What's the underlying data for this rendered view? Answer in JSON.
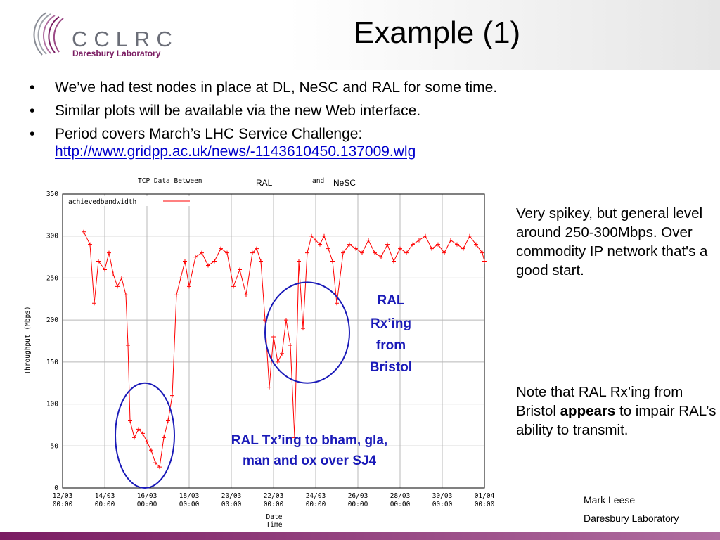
{
  "slide": {
    "title": "Example (1)",
    "logo": {
      "text": "CCLRC",
      "subtitle": "Daresbury Laboratory"
    },
    "bullets": [
      "We’ve had test nodes in place at DL, NeSC and RAL for some time.",
      "Similar plots will be available via the new Web interface.",
      "Period covers March’s LHC Service Challenge:"
    ],
    "link": "http://www.gridpp.ac.uk/news/-1143610450.137009.wlg",
    "note_1": "Very spikey, but general level around 250-300Mbps. Over commodity IP network that's a good start.",
    "note_2_before": "Note that RAL Rx’ing from Bristol ",
    "note_2_bold": "appears",
    "note_2_after": " to impair RAL’s ability to transmit.",
    "author": "Mark Leese",
    "organisation": "Daresbury Laboratory",
    "colors": {
      "accent": "#7a1c62",
      "annotation": "#1a1ab8",
      "series": "#ff0000"
    }
  },
  "chart_data": {
    "type": "line",
    "title": "TCP Data Between",
    "title_from": "RAL",
    "title_and": "and",
    "title_to": "NeSC",
    "xlabel": "Date\nTime",
    "ylabel": "Throughput (Mbps)",
    "legend": "achievedbandwidth",
    "legend_position": "top-left",
    "ylim": [
      0,
      350
    ],
    "yticks": [
      0,
      50,
      100,
      150,
      200,
      250,
      300,
      350
    ],
    "xlim": [
      0,
      20
    ],
    "xtick_labels": [
      "12/03\n00:00",
      "14/03\n00:00",
      "16/03\n00:00",
      "18/03\n00:00",
      "20/03\n00:00",
      "22/03\n00:00",
      "24/03\n00:00",
      "26/03\n00:00",
      "28/03\n00:00",
      "30/03\n00:00",
      "01/04\n00:00"
    ],
    "grid": true,
    "annotations": [
      {
        "label": "RAL Tx’ing to bham, gla, man and ox over SJ4",
        "x_range": [
          2.5,
          5.3
        ],
        "y_range": [
          0,
          125
        ]
      },
      {
        "label": "RAL Rx’ing from Bristol",
        "x_range": [
          9.6,
          13.6
        ],
        "y_range": [
          125,
          245
        ]
      }
    ],
    "series": [
      {
        "x": [
          1.0,
          1.3,
          1.5,
          1.7,
          2.0,
          2.2,
          2.4,
          2.6,
          2.8,
          3.0,
          3.1,
          3.2,
          3.4,
          3.6,
          3.8,
          4.0,
          4.2,
          4.4,
          4.6,
          4.8,
          5.0,
          5.2,
          5.4,
          5.6,
          5.8,
          6.0,
          6.3,
          6.6,
          6.9,
          7.2,
          7.5,
          7.8,
          8.1,
          8.4,
          8.7,
          9.0,
          9.2,
          9.4,
          9.6,
          9.8,
          10.0,
          10.2,
          10.4,
          10.6,
          10.8,
          11.0,
          11.2,
          11.4,
          11.6,
          11.8,
          12.0,
          12.2,
          12.4,
          12.6,
          12.8,
          13.0,
          13.3,
          13.6,
          13.9,
          14.2,
          14.5,
          14.8,
          15.1,
          15.4,
          15.7,
          16.0,
          16.3,
          16.6,
          16.9,
          17.2,
          17.5,
          17.8,
          18.1,
          18.4,
          18.7,
          19.0,
          19.3,
          19.6,
          19.9,
          20.0
        ],
        "values": [
          305,
          290,
          220,
          270,
          260,
          280,
          255,
          240,
          250,
          230,
          170,
          80,
          60,
          70,
          65,
          55,
          45,
          30,
          25,
          60,
          80,
          110,
          230,
          250,
          270,
          240,
          275,
          280,
          265,
          270,
          285,
          280,
          240,
          260,
          230,
          280,
          285,
          270,
          200,
          120,
          180,
          150,
          160,
          200,
          170,
          60,
          270,
          190,
          280,
          300,
          295,
          290,
          300,
          285,
          270,
          220,
          280,
          290,
          285,
          280,
          295,
          280,
          275,
          290,
          270,
          285,
          280,
          290,
          295,
          300,
          285,
          290,
          280,
          295,
          290,
          285,
          300,
          290,
          280,
          270
        ]
      }
    ]
  }
}
